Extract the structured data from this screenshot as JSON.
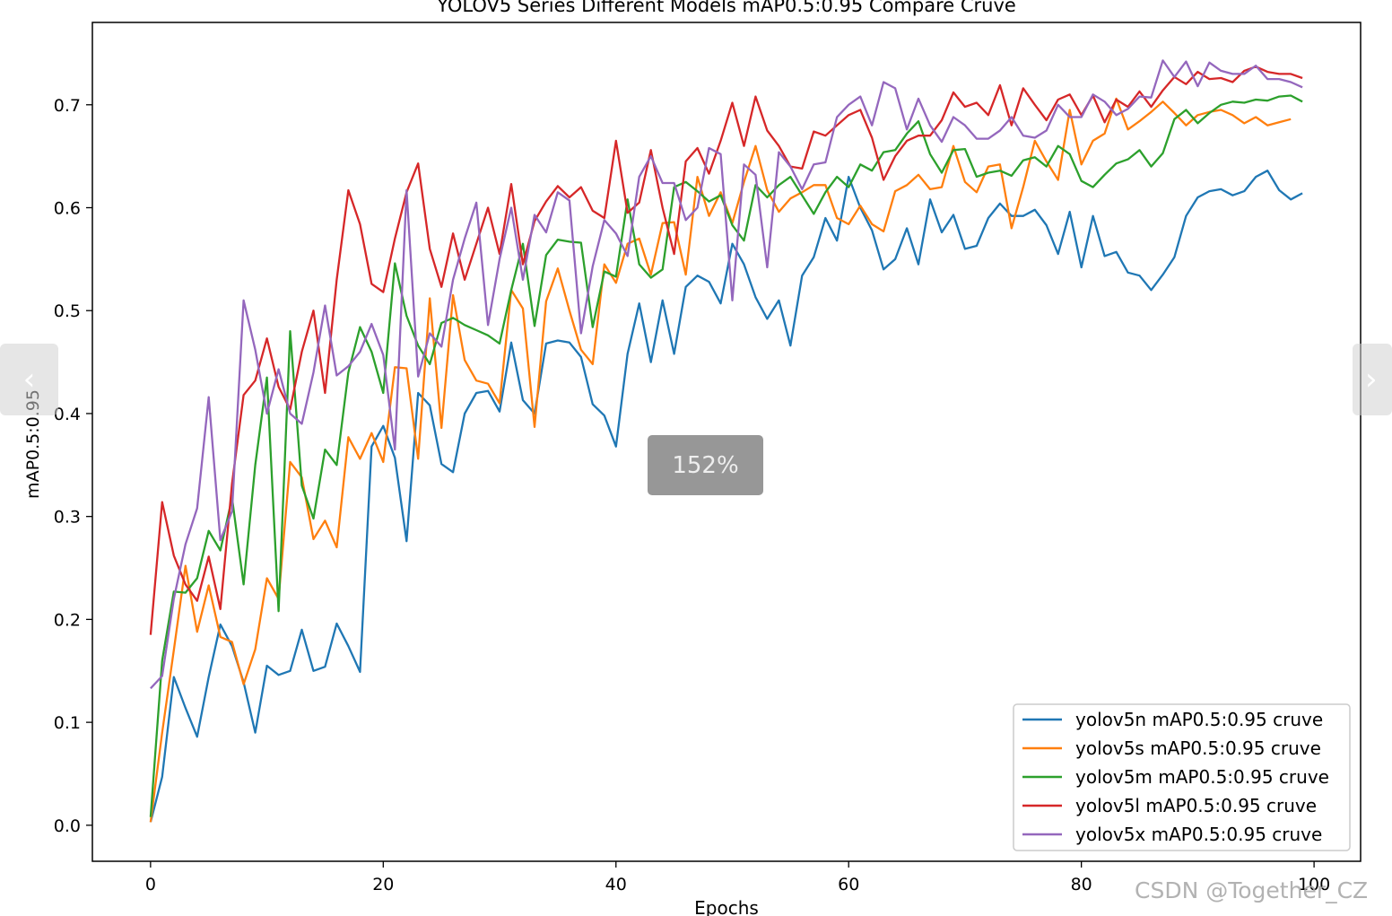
{
  "viewer": {
    "zoom_label": "152%",
    "watermark": "CSDN @Together_CZ",
    "prev_icon": "‹",
    "next_icon": "›"
  },
  "chart_data": {
    "type": "line",
    "title": "YOLOV5 Series Different Models mAP0.5:0.95 Compare Cruve",
    "xlabel": "Epochs",
    "ylabel": "mAP0.5:0.95",
    "xlim": [
      -5,
      104
    ],
    "ylim": [
      -0.035,
      0.78
    ],
    "xticks": [
      0,
      20,
      40,
      60,
      80,
      100
    ],
    "yticks": [
      0.0,
      0.1,
      0.2,
      0.3,
      0.4,
      0.5,
      0.6,
      0.7
    ],
    "legend_position": "lower-right",
    "grid": false,
    "series": [
      {
        "name": "yolov5n mAP0.5:0.95 cruve",
        "color": "#1f77b4",
        "values": [
          0.003,
          0.047,
          0.144,
          0.114,
          0.086,
          0.144,
          0.195,
          0.174,
          0.139,
          0.09,
          0.155,
          0.146,
          0.15,
          0.19,
          0.15,
          0.154,
          0.196,
          0.174,
          0.149,
          0.368,
          0.388,
          0.357,
          0.276,
          0.42,
          0.408,
          0.351,
          0.343,
          0.4,
          0.42,
          0.422,
          0.402,
          0.469,
          0.413,
          0.4,
          0.468,
          0.471,
          0.469,
          0.455,
          0.409,
          0.398,
          0.368,
          0.458,
          0.507,
          0.45,
          0.51,
          0.458,
          0.523,
          0.534,
          0.528,
          0.507,
          0.565,
          0.545,
          0.513,
          0.492,
          0.51,
          0.466,
          0.534,
          0.552,
          0.59,
          0.568,
          0.63,
          0.6,
          0.578,
          0.54,
          0.55,
          0.58,
          0.545,
          0.608,
          0.576,
          0.593,
          0.56,
          0.563,
          0.59,
          0.604,
          0.592,
          0.592,
          0.598,
          0.583,
          0.555,
          0.596,
          0.542,
          0.592,
          0.553,
          0.557,
          0.537,
          0.534,
          0.52,
          0.535,
          0.552,
          0.592,
          0.61,
          0.616,
          0.618,
          0.612,
          0.616,
          0.63,
          0.636,
          0.617,
          0.608,
          0.614
        ]
      },
      {
        "name": "yolov5s mAP0.5:0.95 cruve",
        "color": "#ff7f0e",
        "values": [
          0.003,
          0.09,
          0.17,
          0.252,
          0.188,
          0.233,
          0.183,
          0.178,
          0.137,
          0.171,
          0.24,
          0.22,
          0.353,
          0.338,
          0.278,
          0.296,
          0.27,
          0.377,
          0.356,
          0.381,
          0.353,
          0.445,
          0.444,
          0.356,
          0.512,
          0.386,
          0.515,
          0.452,
          0.432,
          0.429,
          0.41,
          0.52,
          0.502,
          0.387,
          0.509,
          0.541,
          0.5,
          0.462,
          0.448,
          0.545,
          0.527,
          0.565,
          0.57,
          0.535,
          0.585,
          0.586,
          0.535,
          0.63,
          0.592,
          0.615,
          0.585,
          0.625,
          0.66,
          0.617,
          0.596,
          0.609,
          0.615,
          0.622,
          0.622,
          0.59,
          0.584,
          0.602,
          0.584,
          0.577,
          0.616,
          0.622,
          0.632,
          0.618,
          0.62,
          0.66,
          0.625,
          0.615,
          0.64,
          0.642,
          0.58,
          0.62,
          0.665,
          0.645,
          0.627,
          0.695,
          0.642,
          0.665,
          0.672,
          0.706,
          0.676,
          0.684,
          0.693,
          0.703,
          0.692,
          0.68,
          0.69,
          0.693,
          0.695,
          0.69,
          0.682,
          0.688,
          0.68,
          0.683,
          0.686
        ]
      },
      {
        "name": "yolov5m mAP0.5:0.95 cruve",
        "color": "#2ca02c",
        "values": [
          0.008,
          0.16,
          0.227,
          0.226,
          0.24,
          0.286,
          0.267,
          0.318,
          0.234,
          0.35,
          0.435,
          0.208,
          0.48,
          0.33,
          0.298,
          0.365,
          0.35,
          0.44,
          0.484,
          0.46,
          0.42,
          0.546,
          0.495,
          0.466,
          0.448,
          0.488,
          0.493,
          0.486,
          0.481,
          0.476,
          0.468,
          0.52,
          0.565,
          0.485,
          0.554,
          0.569,
          0.567,
          0.566,
          0.484,
          0.538,
          0.533,
          0.608,
          0.545,
          0.532,
          0.54,
          0.62,
          0.625,
          0.616,
          0.606,
          0.612,
          0.583,
          0.568,
          0.622,
          0.61,
          0.622,
          0.63,
          0.612,
          0.594,
          0.615,
          0.63,
          0.62,
          0.642,
          0.636,
          0.654,
          0.656,
          0.672,
          0.684,
          0.652,
          0.634,
          0.656,
          0.657,
          0.63,
          0.634,
          0.636,
          0.631,
          0.646,
          0.649,
          0.64,
          0.66,
          0.652,
          0.626,
          0.62,
          0.632,
          0.643,
          0.647,
          0.656,
          0.64,
          0.653,
          0.686,
          0.695,
          0.682,
          0.692,
          0.7,
          0.703,
          0.702,
          0.705,
          0.704,
          0.708,
          0.709,
          0.703
        ]
      },
      {
        "name": "yolov5l mAP0.5:0.95 cruve",
        "color": "#d62728",
        "values": [
          0.185,
          0.314,
          0.262,
          0.234,
          0.218,
          0.261,
          0.21,
          0.332,
          0.418,
          0.432,
          0.473,
          0.426,
          0.404,
          0.46,
          0.5,
          0.42,
          0.53,
          0.617,
          0.584,
          0.526,
          0.518,
          0.57,
          0.615,
          0.643,
          0.56,
          0.523,
          0.575,
          0.53,
          0.565,
          0.6,
          0.555,
          0.623,
          0.545,
          0.587,
          0.606,
          0.621,
          0.61,
          0.62,
          0.597,
          0.59,
          0.665,
          0.595,
          0.605,
          0.656,
          0.6,
          0.555,
          0.645,
          0.658,
          0.633,
          0.665,
          0.702,
          0.66,
          0.708,
          0.675,
          0.66,
          0.64,
          0.638,
          0.674,
          0.67,
          0.68,
          0.69,
          0.695,
          0.668,
          0.627,
          0.65,
          0.665,
          0.67,
          0.67,
          0.685,
          0.712,
          0.698,
          0.702,
          0.69,
          0.719,
          0.68,
          0.716,
          0.7,
          0.685,
          0.705,
          0.71,
          0.69,
          0.709,
          0.683,
          0.705,
          0.698,
          0.713,
          0.698,
          0.714,
          0.727,
          0.72,
          0.732,
          0.725,
          0.726,
          0.722,
          0.733,
          0.737,
          0.732,
          0.73,
          0.73,
          0.726
        ]
      },
      {
        "name": "yolov5x mAP0.5:0.95 cruve",
        "color": "#9467bd",
        "values": [
          0.133,
          0.145,
          0.22,
          0.273,
          0.308,
          0.416,
          0.277,
          0.305,
          0.51,
          0.462,
          0.4,
          0.443,
          0.4,
          0.39,
          0.44,
          0.505,
          0.437,
          0.446,
          0.46,
          0.487,
          0.457,
          0.365,
          0.617,
          0.436,
          0.478,
          0.465,
          0.53,
          0.57,
          0.605,
          0.486,
          0.55,
          0.6,
          0.53,
          0.593,
          0.576,
          0.615,
          0.607,
          0.478,
          0.543,
          0.588,
          0.575,
          0.553,
          0.63,
          0.65,
          0.624,
          0.624,
          0.588,
          0.6,
          0.658,
          0.652,
          0.51,
          0.642,
          0.632,
          0.542,
          0.654,
          0.64,
          0.618,
          0.642,
          0.644,
          0.688,
          0.7,
          0.708,
          0.68,
          0.722,
          0.716,
          0.676,
          0.706,
          0.68,
          0.664,
          0.688,
          0.68,
          0.667,
          0.667,
          0.675,
          0.688,
          0.67,
          0.668,
          0.675,
          0.7,
          0.688,
          0.688,
          0.71,
          0.703,
          0.69,
          0.696,
          0.708,
          0.707,
          0.743,
          0.727,
          0.742,
          0.718,
          0.741,
          0.733,
          0.73,
          0.73,
          0.738,
          0.725,
          0.725,
          0.722,
          0.717
        ]
      }
    ]
  }
}
